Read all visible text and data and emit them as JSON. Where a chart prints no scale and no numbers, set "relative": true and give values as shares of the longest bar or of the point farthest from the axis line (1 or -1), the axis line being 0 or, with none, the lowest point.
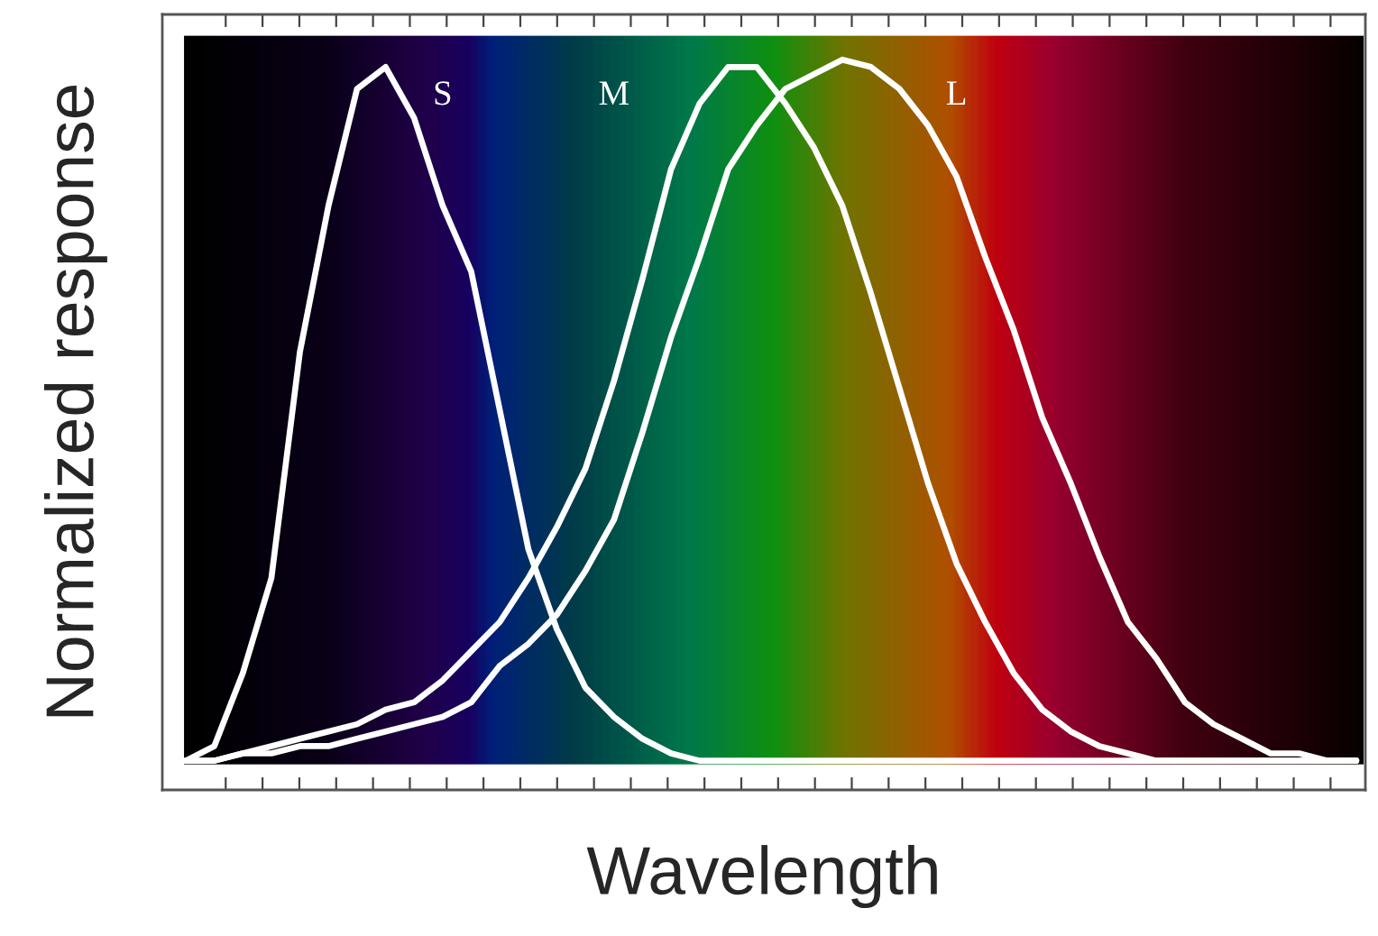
{
  "chart_data": {
    "type": "line",
    "relative": true,
    "xlabel": "Wavelength",
    "ylabel": "Normalized response",
    "tick_labels": false,
    "grid": false,
    "marker": "none",
    "line_style": "solid",
    "categories": [
      null,
      null,
      null,
      null,
      null,
      null,
      null,
      null,
      null,
      null,
      null,
      null,
      null,
      null,
      null,
      null,
      null,
      null,
      null,
      null,
      null,
      null,
      null,
      null,
      null,
      null,
      null,
      null,
      null,
      null,
      null,
      null,
      null,
      null,
      null,
      null,
      null,
      null,
      null,
      null,
      null,
      null
    ],
    "series": [
      {
        "name": "S",
        "color": "#ffffff",
        "values": [
          0.04,
          0.06,
          0.16,
          0.29,
          0.6,
          0.8,
          0.96,
          0.99,
          0.92,
          0.8,
          0.71,
          0.52,
          0.33,
          0.22,
          0.14,
          0.1,
          0.07,
          0.05,
          0.04,
          0.04,
          0.04,
          0.04,
          0.04,
          0.04,
          0.04,
          0.04,
          0.04,
          0.04,
          0.04,
          0.04,
          0.04,
          0.04,
          0.04,
          0.04,
          0.04,
          0.04,
          0.04,
          0.04,
          0.04,
          0.04,
          0.04,
          0.04
        ]
      },
      {
        "name": "M",
        "color": "#ffffff",
        "values": [
          0.04,
          0.04,
          0.05,
          0.06,
          0.07,
          0.08,
          0.09,
          0.11,
          0.12,
          0.15,
          0.19,
          0.23,
          0.29,
          0.36,
          0.44,
          0.56,
          0.7,
          0.85,
          0.94,
          0.99,
          0.99,
          0.94,
          0.88,
          0.8,
          0.68,
          0.55,
          0.42,
          0.31,
          0.23,
          0.16,
          0.11,
          0.08,
          0.06,
          0.05,
          0.04,
          0.04,
          0.04,
          0.04,
          0.04,
          0.04,
          0.04,
          0.04
        ]
      },
      {
        "name": "L",
        "color": "#ffffff",
        "values": [
          0.04,
          0.04,
          0.05,
          0.05,
          0.06,
          0.06,
          0.07,
          0.08,
          0.09,
          0.1,
          0.12,
          0.17,
          0.2,
          0.24,
          0.3,
          0.37,
          0.49,
          0.62,
          0.73,
          0.85,
          0.91,
          0.96,
          0.98,
          1,
          0.99,
          0.96,
          0.91,
          0.84,
          0.73,
          0.63,
          0.51,
          0.42,
          0.32,
          0.23,
          0.18,
          0.12,
          0.09,
          0.07,
          0.05,
          0.05,
          0.04,
          0.04
        ]
      }
    ]
  }
}
